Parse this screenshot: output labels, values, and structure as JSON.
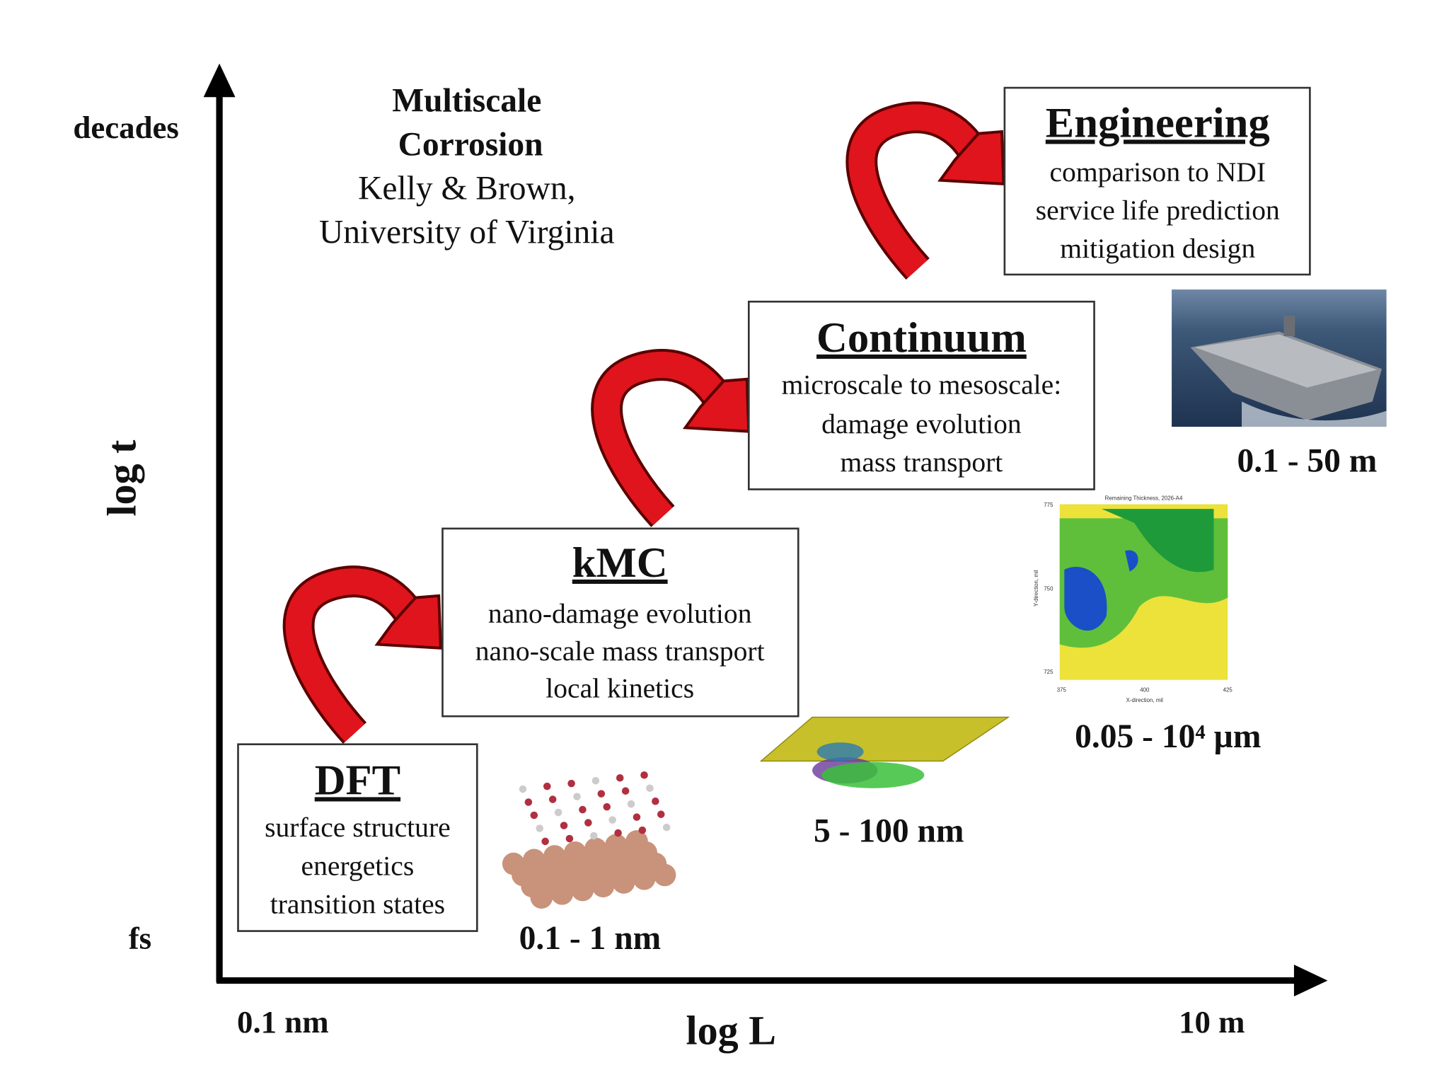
{
  "title": [
    "Multiscale",
    "Corrosion"
  ],
  "subtitle": [
    "Kelly & Brown,",
    "University of Virginia"
  ],
  "axes": {
    "y_label": "log t",
    "y_top": "decades",
    "y_bottom": "fs",
    "x_label": "log L",
    "x_left": "0.1 nm",
    "x_right": "10 m"
  },
  "boxes": [
    {
      "title": "DFT",
      "lines": [
        "surface structure",
        "energetics",
        "transition states"
      ]
    },
    {
      "title": "kMC",
      "lines": [
        "nano-damage evolution",
        "nano-scale mass transport",
        "local kinetics"
      ]
    },
    {
      "title": "Continuum",
      "lines": [
        "microscale to mesoscale:",
        "damage evolution",
        "mass transport"
      ]
    },
    {
      "title": "Engineering",
      "lines": [
        "comparison to NDI",
        "service life prediction",
        "mitigation design"
      ]
    }
  ],
  "scales": [
    "0.1 - 1 nm",
    "5 - 100 nm",
    "0.05 - 10⁴ µm",
    "0.1 - 50 m"
  ],
  "contour_map": {
    "title": "Remaining Thickness, 2026-A4",
    "x_label": "X-direction, mil",
    "y_label": "Y-direction, mil",
    "x_ticks": [
      "375",
      "400",
      "425"
    ],
    "y_ticks": [
      "775",
      "750",
      "725"
    ]
  }
}
